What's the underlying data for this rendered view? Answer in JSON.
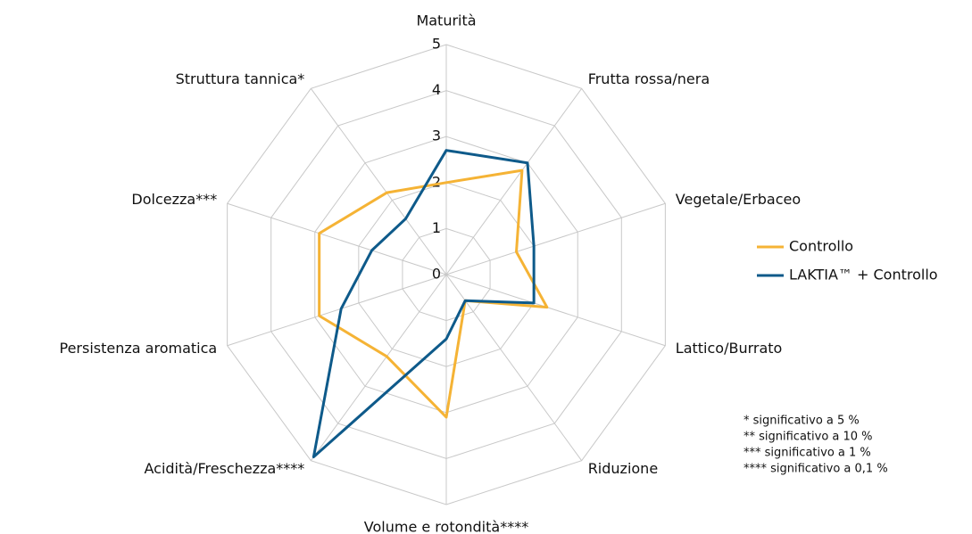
{
  "chart_data": {
    "type": "radar",
    "categories": [
      "Maturità",
      "Frutta rossa/nera",
      "Vegetale/Erbaceo",
      "Lattico/Burrato",
      "Riduzione",
      "Volume e rotondità****",
      "Acidità/Freschezza****",
      "Persistenza aromatica",
      "Dolcezza***",
      "Struttura tannica*"
    ],
    "series": [
      {
        "name": "Controllo",
        "color": "#f5b335",
        "values": [
          2.0,
          2.8,
          1.6,
          2.3,
          0.7,
          3.1,
          2.2,
          2.9,
          2.9,
          2.2
        ]
      },
      {
        "name": "LAKTIA™ + Controllo",
        "color": "#0e5a8a",
        "values": [
          2.7,
          3.0,
          2.0,
          2.0,
          0.7,
          1.4,
          4.9,
          2.4,
          1.7,
          1.5
        ]
      }
    ],
    "ylim": [
      0,
      5
    ],
    "yticks": [
      0,
      1,
      2,
      3,
      4,
      5
    ],
    "grid": true,
    "legend": "right",
    "annotations": [
      "* significativo a 5 %",
      "**  significativo a 10 %",
      "*** significativo a 1 %",
      "**** significativo a 0,1 %"
    ]
  }
}
